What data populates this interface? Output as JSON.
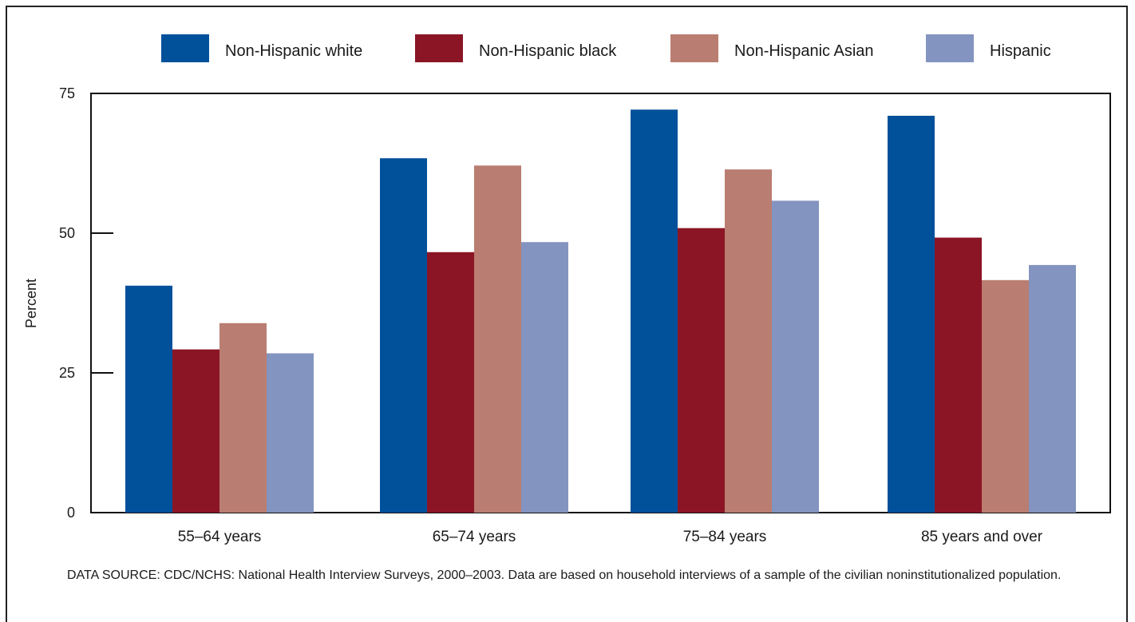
{
  "chart_data": {
    "type": "bar",
    "categories": [
      "55–64 years",
      "65–74 years",
      "75–84 years",
      "85 years and over"
    ],
    "series": [
      {
        "name": "Non-Hispanic white",
        "color": "#00509a",
        "values": [
          40.6,
          63.4,
          72.1,
          71.0
        ]
      },
      {
        "name": "Non-Hispanic black",
        "color": "#8b1525",
        "values": [
          29.2,
          46.6,
          50.9,
          49.2
        ]
      },
      {
        "name": "Non-Hispanic Asian",
        "color": "#ba7d71",
        "values": [
          33.9,
          62.1,
          61.4,
          41.6
        ]
      },
      {
        "name": "Hispanic",
        "color": "#8394c0",
        "values": [
          28.5,
          48.4,
          55.8,
          44.3
        ]
      }
    ],
    "ylabel": "Percent",
    "xlabel": "",
    "ylim": [
      0,
      75
    ],
    "yticks": [
      0,
      25,
      50,
      75
    ],
    "legend_position": "top",
    "grid": false
  },
  "footnote": {
    "source": "DATA SOURCE: CDC/NCHS: National Health Interview Surveys, 2000–2003. Data are based on household interviews of a sample of the civilian noninstitutionalized population."
  }
}
